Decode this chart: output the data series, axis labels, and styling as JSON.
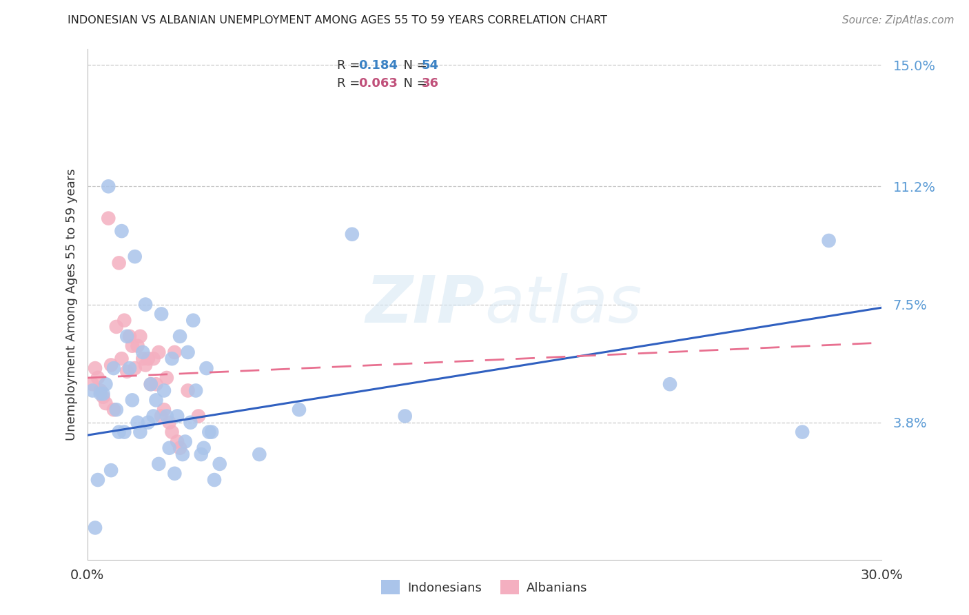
{
  "title": "INDONESIAN VS ALBANIAN UNEMPLOYMENT AMONG AGES 55 TO 59 YEARS CORRELATION CHART",
  "source": "Source: ZipAtlas.com",
  "ylabel": "Unemployment Among Ages 55 to 59 years",
  "xlim": [
    0,
    0.3
  ],
  "ylim": [
    -0.005,
    0.155
  ],
  "yticks": [
    0.038,
    0.075,
    0.112,
    0.15
  ],
  "ytick_labels": [
    "3.8%",
    "7.5%",
    "11.2%",
    "15.0%"
  ],
  "indonesian_color": "#aac4ea",
  "albanian_color": "#f4afc0",
  "line_indonesian_color": "#3060c0",
  "line_albanian_color": "#e87090",
  "indo_line_y0": 0.034,
  "indo_line_y1": 0.074,
  "alb_line_y0": 0.052,
  "alb_line_y1": 0.063,
  "indonesian_x": [
    0.008,
    0.013,
    0.018,
    0.01,
    0.015,
    0.007,
    0.005,
    0.012,
    0.02,
    0.025,
    0.022,
    0.03,
    0.028,
    0.035,
    0.032,
    0.038,
    0.04,
    0.045,
    0.006,
    0.009,
    0.014,
    0.019,
    0.024,
    0.029,
    0.034,
    0.039,
    0.044,
    0.003,
    0.016,
    0.021,
    0.026,
    0.031,
    0.036,
    0.041,
    0.046,
    0.002,
    0.011,
    0.017,
    0.023,
    0.027,
    0.033,
    0.037,
    0.043,
    0.047,
    0.048,
    0.004,
    0.05,
    0.065,
    0.08,
    0.1,
    0.12,
    0.22,
    0.27,
    0.28
  ],
  "indonesian_y": [
    0.112,
    0.098,
    0.09,
    0.055,
    0.065,
    0.05,
    0.047,
    0.035,
    0.035,
    0.04,
    0.075,
    0.04,
    0.072,
    0.065,
    0.058,
    0.06,
    0.07,
    0.055,
    0.047,
    0.023,
    0.035,
    0.038,
    0.05,
    0.048,
    0.04,
    0.038,
    0.03,
    0.005,
    0.055,
    0.06,
    0.045,
    0.03,
    0.028,
    0.048,
    0.035,
    0.048,
    0.042,
    0.045,
    0.038,
    0.025,
    0.022,
    0.032,
    0.028,
    0.035,
    0.02,
    0.02,
    0.025,
    0.028,
    0.042,
    0.097,
    0.04,
    0.05,
    0.035,
    0.095
  ],
  "albanian_x": [
    0.002,
    0.003,
    0.004,
    0.005,
    0.006,
    0.007,
    0.008,
    0.009,
    0.01,
    0.011,
    0.012,
    0.013,
    0.014,
    0.015,
    0.016,
    0.017,
    0.018,
    0.019,
    0.02,
    0.021,
    0.022,
    0.023,
    0.024,
    0.025,
    0.026,
    0.027,
    0.028,
    0.029,
    0.03,
    0.031,
    0.032,
    0.033,
    0.034,
    0.035,
    0.038,
    0.042
  ],
  "albanian_y": [
    0.05,
    0.055,
    0.052,
    0.048,
    0.046,
    0.044,
    0.102,
    0.056,
    0.042,
    0.068,
    0.088,
    0.058,
    0.07,
    0.054,
    0.065,
    0.062,
    0.055,
    0.062,
    0.065,
    0.058,
    0.056,
    0.058,
    0.05,
    0.058,
    0.05,
    0.06,
    0.04,
    0.042,
    0.052,
    0.038,
    0.035,
    0.06,
    0.032,
    0.03,
    0.048,
    0.04
  ]
}
